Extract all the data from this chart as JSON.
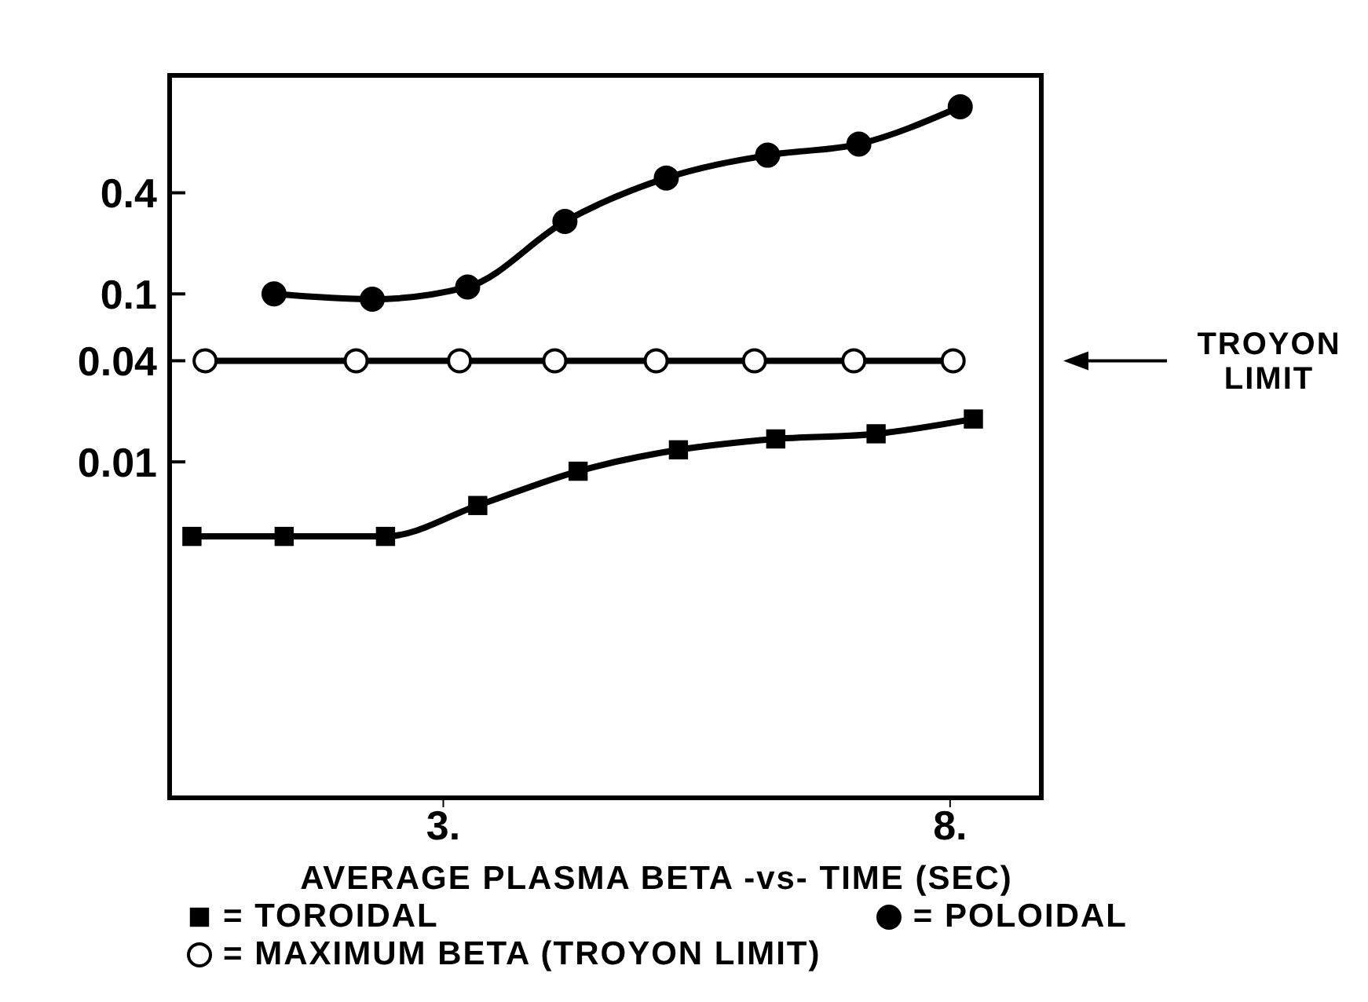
{
  "chart_data": {
    "type": "line",
    "xlabel": "AVERAGE PLASMA BETA -vs- TIME (SEC)",
    "xlim": [
      0.3,
      8.9
    ],
    "xticks": [
      {
        "value": 3,
        "label": "3."
      },
      {
        "value": 8,
        "label": "8."
      }
    ],
    "ylim": [
      0.0001,
      2
    ],
    "yticks": [
      0.01,
      0.04,
      0.1,
      0.4
    ],
    "log": "y",
    "grid": false,
    "legend": "bottom",
    "series": [
      {
        "name": "= TOROIDAL",
        "color": "#000000",
        "marker": "square",
        "x": [
          0.52,
          1.43,
          2.43,
          3.34,
          4.33,
          5.32,
          6.28,
          7.27,
          8.23
        ],
        "values": [
          0.0036,
          0.0036,
          0.0036,
          0.0055,
          0.0088,
          0.0118,
          0.0137,
          0.0147,
          0.018
        ]
      },
      {
        "name": "= POLOIDAL",
        "color": "#000000",
        "marker": "circle",
        "x": [
          1.33,
          2.3,
          3.24,
          4.2,
          5.2,
          6.2,
          7.1,
          8.1
        ],
        "values": [
          0.1,
          0.093,
          0.11,
          0.27,
          0.49,
          0.67,
          0.78,
          1.3
        ]
      },
      {
        "name": "= MAXIMUM BETA (TROYON LIMIT)",
        "color": "#000000",
        "colors": [
          "#ffffff",
          "#ffffff",
          "#ffffff",
          "#ffffff",
          "#ffffff",
          "#ffffff",
          "#ffffff",
          "#ffffff"
        ],
        "marker": "circle",
        "x": [
          0.65,
          2.14,
          3.16,
          4.1,
          5.1,
          6.07,
          7.05,
          8.03
        ],
        "values": [
          0.04,
          0.04,
          0.04,
          0.04,
          0.04,
          0.04,
          0.04,
          0.04
        ]
      }
    ],
    "annotations": [
      "TROYON LIMIT"
    ]
  }
}
